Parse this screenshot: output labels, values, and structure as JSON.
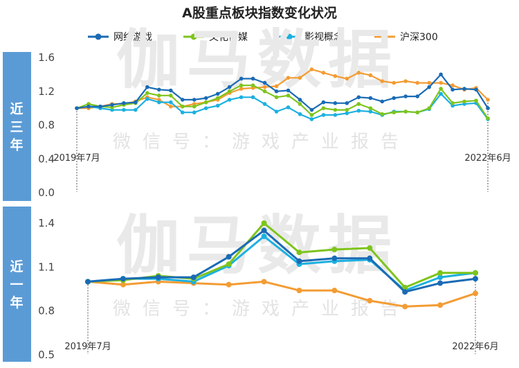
{
  "title": "A股重点板块指数变化状况",
  "watermark": {
    "main": "伽马数据",
    "sub": "微信号：游戏产业报告"
  },
  "colors": {
    "网络游戏": "#1a6bb5",
    "文化传媒": "#7ec41c",
    "影视概念": "#1cb0e0",
    "沪深300": "#f39c33",
    "side_panel": "#5b9bd5"
  },
  "legend": [
    "网络游戏",
    "文化传媒",
    "影视概念",
    "沪深300"
  ],
  "chart_data": [
    {
      "type": "line",
      "side_label": "近三年",
      "x_start_label": "2019年7月",
      "x_end_label": "2022年6月",
      "yticks": [
        "1.6",
        "1.2",
        "0.8",
        "0.4",
        "0.0"
      ],
      "ylim": [
        0,
        1.6
      ],
      "categories": [
        "2019-07",
        "2019-08",
        "2019-09",
        "2019-10",
        "2019-11",
        "2019-12",
        "2020-01",
        "2020-02",
        "2020-03",
        "2020-04",
        "2020-05",
        "2020-06",
        "2020-07",
        "2020-08",
        "2020-09",
        "2020-10",
        "2020-11",
        "2020-12",
        "2021-01",
        "2021-02",
        "2021-03",
        "2021-04",
        "2021-05",
        "2021-06",
        "2021-07",
        "2021-08",
        "2021-09",
        "2021-10",
        "2021-11",
        "2021-12",
        "2022-01",
        "2022-02",
        "2022-03",
        "2022-04",
        "2022-05",
        "2022-06"
      ],
      "series": [
        {
          "name": "网络游戏",
          "values": [
            1.0,
            1.02,
            1.02,
            1.04,
            1.06,
            1.07,
            1.25,
            1.22,
            1.21,
            1.1,
            1.1,
            1.12,
            1.17,
            1.25,
            1.35,
            1.35,
            1.3,
            1.2,
            1.21,
            1.1,
            0.98,
            1.07,
            1.06,
            1.06,
            1.13,
            1.12,
            1.08,
            1.12,
            1.14,
            1.14,
            1.25,
            1.4,
            1.22,
            1.23,
            1.22,
            1.0
          ]
        },
        {
          "name": "文化传媒",
          "values": [
            1.0,
            1.05,
            1.02,
            1.01,
            1.04,
            1.06,
            1.18,
            1.15,
            1.15,
            1.02,
            1.02,
            1.07,
            1.12,
            1.2,
            1.27,
            1.27,
            1.2,
            1.13,
            1.15,
            1.05,
            0.92,
            1.0,
            0.98,
            0.98,
            1.05,
            1.0,
            0.93,
            0.95,
            0.96,
            0.95,
            1.0,
            1.23,
            1.06,
            1.08,
            1.09,
            0.88
          ]
        },
        {
          "name": "影视概念",
          "values": [
            1.0,
            1.02,
            1.0,
            0.98,
            0.98,
            0.98,
            1.11,
            1.07,
            1.07,
            0.95,
            0.95,
            1.0,
            1.03,
            1.1,
            1.13,
            1.13,
            1.05,
            0.96,
            1.01,
            0.93,
            0.87,
            0.92,
            0.92,
            0.94,
            0.97,
            0.96,
            0.92,
            0.96,
            0.96,
            0.95,
            0.99,
            1.17,
            1.03,
            1.05,
            1.06,
            0.87
          ]
        },
        {
          "name": "沪深300",
          "values": [
            1.0,
            1.0,
            1.02,
            1.05,
            1.05,
            1.08,
            1.13,
            1.1,
            1.02,
            1.02,
            1.05,
            1.07,
            1.1,
            1.18,
            1.23,
            1.24,
            1.25,
            1.26,
            1.36,
            1.36,
            1.46,
            1.42,
            1.38,
            1.35,
            1.42,
            1.39,
            1.32,
            1.3,
            1.32,
            1.3,
            1.3,
            1.3,
            1.27,
            1.22,
            1.24,
            1.1
          ]
        }
      ]
    },
    {
      "type": "line",
      "side_label": "近一年",
      "x_start_label": "2019年7月",
      "x_end_label": "2022年6月",
      "yticks": [
        "1.4",
        "1.1",
        "0.8",
        "0.5"
      ],
      "ylim": [
        0.5,
        1.4
      ],
      "categories": [
        "1",
        "2",
        "3",
        "4",
        "5",
        "6",
        "7",
        "8",
        "9",
        "10",
        "11",
        "12"
      ],
      "series": [
        {
          "name": "网络游戏",
          "values": [
            1.0,
            1.02,
            1.03,
            1.03,
            1.17,
            1.35,
            1.14,
            1.16,
            1.16,
            0.93,
            0.99,
            1.02
          ]
        },
        {
          "name": "文化传媒",
          "values": [
            1.0,
            1.01,
            1.04,
            1.02,
            1.12,
            1.4,
            1.2,
            1.22,
            1.23,
            0.96,
            1.06,
            1.06
          ]
        },
        {
          "name": "影视概念",
          "values": [
            1.0,
            1.02,
            1.02,
            1.0,
            1.11,
            1.31,
            1.12,
            1.14,
            1.15,
            0.94,
            1.03,
            1.06
          ]
        },
        {
          "name": "沪深300",
          "values": [
            1.0,
            0.98,
            1.0,
            0.99,
            0.98,
            1.0,
            0.94,
            0.94,
            0.87,
            0.83,
            0.84,
            0.92
          ]
        }
      ]
    }
  ]
}
